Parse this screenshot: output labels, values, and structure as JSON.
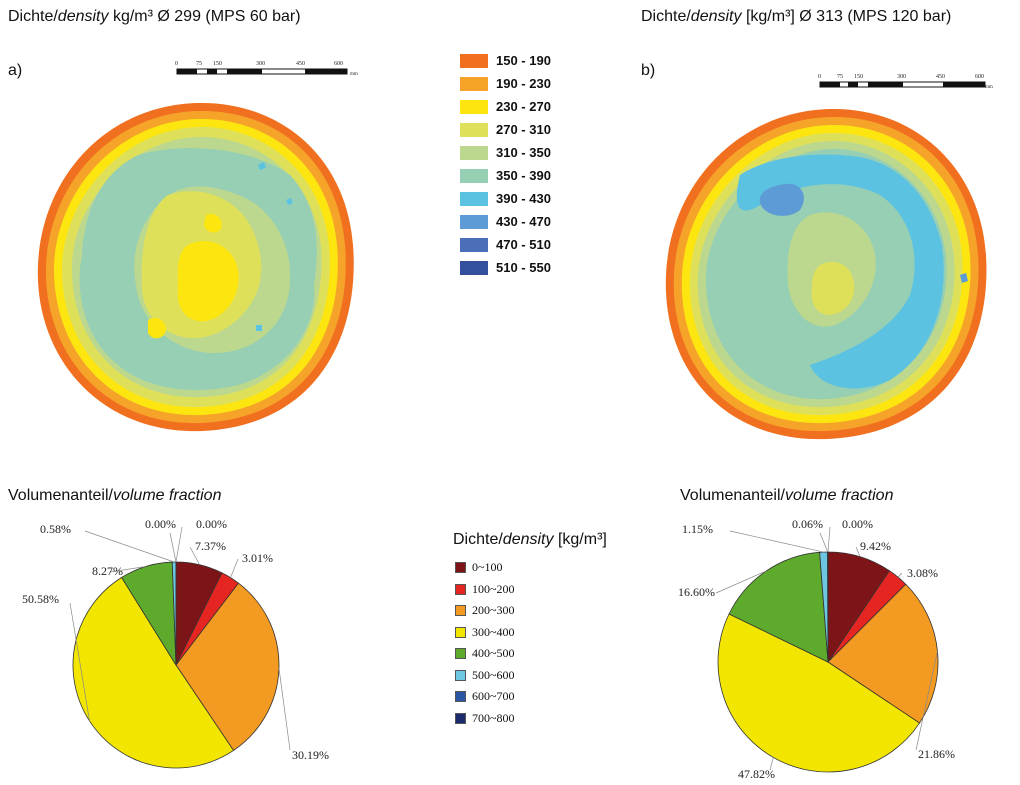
{
  "maps": [
    {
      "label": "a)",
      "title_prefix": "Dichte/",
      "title_italic": "density",
      "title_suffix": " kg/m³ Ø 299 (MPS 60 bar)",
      "scale_ticks": [
        "0",
        "75",
        "150",
        "300",
        "450",
        "600"
      ],
      "scale_unit": "mm"
    },
    {
      "label": "b)",
      "title_prefix": "Dichte/",
      "title_italic": "density",
      "title_suffix": " [kg/m³] Ø 313 (MPS 120 bar)",
      "scale_ticks": [
        "0",
        "75",
        "150",
        "300",
        "450",
        "600"
      ],
      "scale_unit": "mm"
    }
  ],
  "map_legend": [
    {
      "label": "150 - 190",
      "color": "#f07020"
    },
    {
      "label": "190 - 230",
      "color": "#f6a32a"
    },
    {
      "label": "230 - 270",
      "color": "#fde60f"
    },
    {
      "label": "270 - 310",
      "color": "#dfe05a"
    },
    {
      "label": "310 - 350",
      "color": "#bcd88e"
    },
    {
      "label": "350 - 390",
      "color": "#96cfb3"
    },
    {
      "label": "390 - 430",
      "color": "#5cc2e2"
    },
    {
      "label": "430 - 470",
      "color": "#5d9bd6"
    },
    {
      "label": "470 - 510",
      "color": "#4a6fb8"
    },
    {
      "label": "510 - 550",
      "color": "#344f9e"
    }
  ],
  "pie_legend_title_prefix": "Dichte/",
  "pie_legend_title_italic": "density",
  "pie_legend_title_suffix": " [kg/m³]",
  "chart_data": [
    {
      "type": "pie",
      "title_prefix": "Volumenanteil/",
      "title_italic": "volume fraction",
      "categories": [
        "0~100",
        "100~200",
        "200~300",
        "300~400",
        "400~500",
        "500~600",
        "600~700",
        "700~800"
      ],
      "values": [
        7.37,
        3.01,
        30.19,
        50.58,
        8.27,
        0.58,
        0.0,
        0.0
      ],
      "labels": [
        "7.37%",
        "3.01%",
        "30.19%",
        "50.58%",
        "8.27%",
        "0.58%",
        "0.00%",
        "0.00%"
      ],
      "colors": [
        "#7d1518",
        "#e52521",
        "#f29a21",
        "#f2e600",
        "#5daa2d",
        "#6ec7e2",
        "#2b55a5",
        "#1a2a6c"
      ]
    },
    {
      "type": "pie",
      "title_prefix": "Volumenanteil/",
      "title_italic": "volume fraction",
      "categories": [
        "0~100",
        "100~200",
        "200~300",
        "300~400",
        "400~500",
        "500~600",
        "600~700",
        "700~800"
      ],
      "values": [
        9.42,
        3.08,
        21.86,
        47.82,
        16.6,
        1.15,
        0.06,
        0.0
      ],
      "labels": [
        "9.42%",
        "3.08%",
        "21.86%",
        "47.82%",
        "16.60%",
        "1.15%",
        "0.06%",
        "0.00%"
      ],
      "colors": [
        "#7d1518",
        "#e52521",
        "#f29a21",
        "#f2e600",
        "#5daa2d",
        "#6ec7e2",
        "#2b55a5",
        "#1a2a6c"
      ]
    }
  ]
}
